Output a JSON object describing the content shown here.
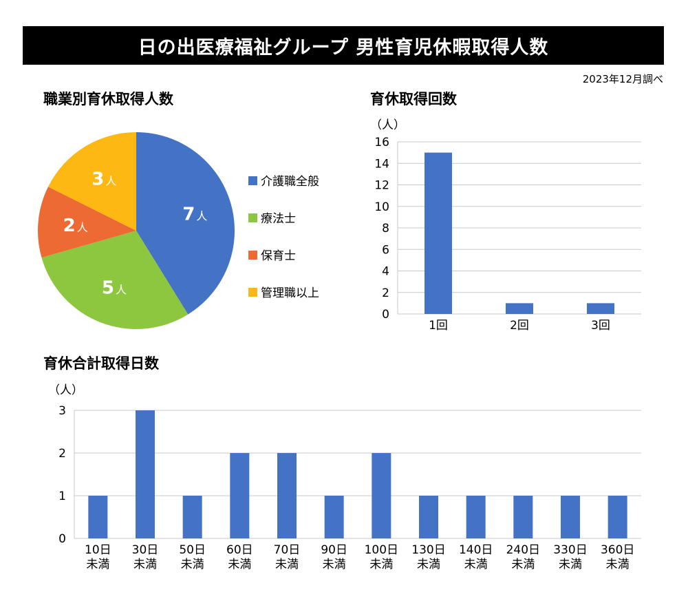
{
  "title": "日の出医療福祉グループ 男性育児休暇取得人数",
  "note": "2023年12月調べ",
  "chart_data": [
    {
      "type": "pie",
      "title": "職業別育休取得人数",
      "unit": "人",
      "categories": [
        "介護職全般",
        "療法士",
        "保育士",
        "管理職以上"
      ],
      "values": [
        7,
        5,
        2,
        3
      ],
      "colors": [
        "#4472C4",
        "#8DC63F",
        "#EE6A33",
        "#FDB813"
      ],
      "legend": "right"
    },
    {
      "type": "bar",
      "title": "育休取得回数",
      "ylabel": "（人）",
      "categories": [
        "1回",
        "2回",
        "3回"
      ],
      "values": [
        15,
        1,
        1
      ],
      "ylim": [
        0,
        16
      ],
      "yticks": [
        0,
        2,
        4,
        6,
        8,
        10,
        12,
        14,
        16
      ],
      "grid": true,
      "color": "#4472C4"
    },
    {
      "type": "bar",
      "title": "育休合計取得日数",
      "ylabel": "（人）",
      "categories": [
        "10日\n未満",
        "30日\n未満",
        "50日\n未満",
        "60日\n未満",
        "70日\n未満",
        "90日\n未満",
        "100日\n未満",
        "130日\n未満",
        "140日\n未満",
        "240日\n未満",
        "330日\n未満",
        "360日\n未満"
      ],
      "values": [
        1,
        3,
        1,
        2,
        2,
        1,
        2,
        1,
        1,
        1,
        1,
        1
      ],
      "ylim": [
        0,
        3
      ],
      "yticks": [
        0,
        1,
        2,
        3
      ],
      "grid": true,
      "color": "#4472C4"
    }
  ]
}
